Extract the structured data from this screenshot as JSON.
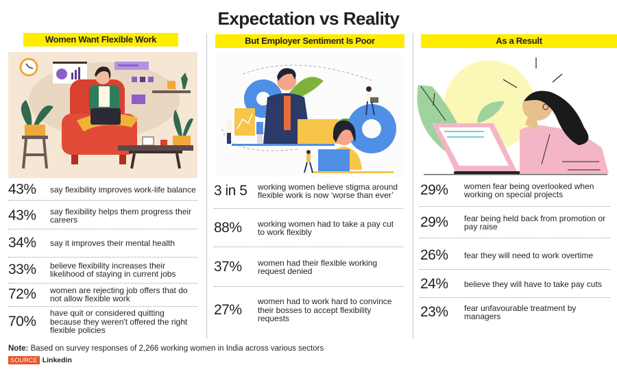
{
  "title": "Expectation vs Reality",
  "columns": [
    {
      "header": "Women Want Flexible Work",
      "illustration": "woman-working-from-home-armchair-laptop",
      "stats": [
        {
          "value": "43%",
          "text": "say flexibility improves work-life balance"
        },
        {
          "value": "43%",
          "text": "say flexibility helps them progress their careers"
        },
        {
          "value": "34%",
          "text": "say it improves their mental health"
        },
        {
          "value": "33%",
          "text": "believe flexibility increases their likelihood of staying in current jobs"
        },
        {
          "value": "72%",
          "text": "women are rejecting job offers that do not allow flexible work"
        },
        {
          "value": "70%",
          "text": "have quit or considered quitting because they weren't offered the right flexible policies"
        }
      ]
    },
    {
      "header": "But Employer Sentiment Is Poor",
      "illustration": "office-team-gears-laptops",
      "stats": [
        {
          "value": "3 in 5",
          "text": "working women believe stigma around flexible work is now ‘worse than ever’"
        },
        {
          "value": "88%",
          "text": "working women had to take a pay cut to work flexibly"
        },
        {
          "value": "37%",
          "text": "women had their flexible working request denied"
        },
        {
          "value": "27%",
          "text": "women had to work hard to convince their bosses to accept flexibility requests"
        }
      ]
    },
    {
      "header": "As a Result",
      "illustration": "stressed-woman-at-laptop",
      "stats": [
        {
          "value": "29%",
          "text": "women fear being overlooked when working on special projects"
        },
        {
          "value": "29%",
          "text": "fear being held back from promotion or pay raise"
        },
        {
          "value": "26%",
          "text": "fear they will need to work overtime"
        },
        {
          "value": "24%",
          "text": "believe they will have to take pay cuts"
        },
        {
          "value": "23%",
          "text": "fear unfavourable treatment by managers"
        }
      ]
    }
  ],
  "note": {
    "label": "Note:",
    "text": "Based on survey responses of 2,266 working women in India across various sectors"
  },
  "source": {
    "label": "SOURCE",
    "value": "Linkedin"
  },
  "colors": {
    "header_bg": "#ffed00",
    "source_badge": "#e8522a",
    "text": "#231f20"
  }
}
